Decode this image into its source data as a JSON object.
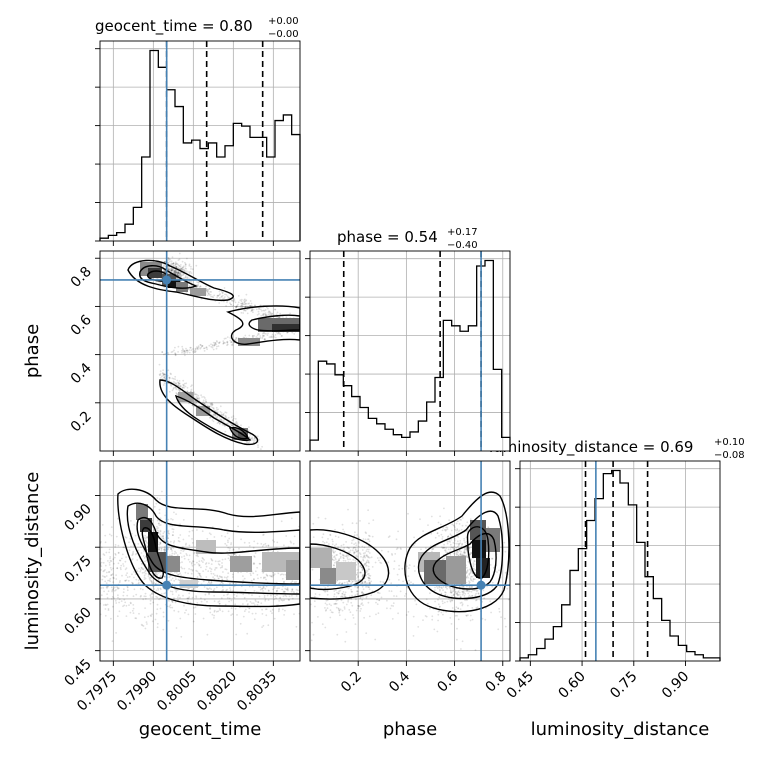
{
  "chart_data": {
    "type": "corner",
    "params": [
      {
        "key": "geocent_time",
        "label": "geocent_time",
        "range": [
          0.797,
          0.8045
        ],
        "ticks": [
          "0.7975",
          "0.7990",
          "0.8005",
          "0.8020",
          "0.8035"
        ],
        "tick_values": [
          0.7975,
          0.799,
          0.8005,
          0.802,
          0.8035
        ],
        "truth": 0.7995,
        "quantiles": [
          0.7995,
          0.801,
          0.8031
        ],
        "title": {
          "name": "geocent_time",
          "median": "0.80",
          "plus": "+0.00",
          "minus": "−0.00"
        },
        "hist": [
          1,
          2,
          3,
          6,
          12,
          30,
          68,
          62,
          54,
          48,
          35,
          36,
          33,
          35,
          30,
          34,
          42,
          41,
          37,
          37,
          30,
          43,
          45,
          38
        ]
      },
      {
        "key": "phase",
        "label": "phase",
        "range": [
          0.0,
          0.83
        ],
        "ticks": [
          "0.2",
          "0.4",
          "0.6",
          "0.8"
        ],
        "tick_values": [
          0.2,
          0.4,
          0.6,
          0.8
        ],
        "truth": 0.71,
        "quantiles": [
          0.14,
          0.54,
          0.71
        ],
        "title": {
          "name": "phase",
          "median": "0.54",
          "plus": "+0.17",
          "minus": "−0.40"
        },
        "hist": [
          4,
          33,
          32,
          28,
          24,
          20,
          16,
          12,
          10,
          8,
          6,
          5,
          7,
          11,
          18,
          27,
          48,
          46,
          44,
          46,
          68,
          70,
          30,
          5
        ]
      },
      {
        "key": "luminosity_distance",
        "label": "luminosity_distance",
        "range": [
          0.42,
          1.0
        ],
        "ticks": [
          "0.45",
          "0.60",
          "0.75",
          "0.90"
        ],
        "tick_values": [
          0.45,
          0.6,
          0.75,
          0.9
        ],
        "truth": 0.64,
        "quantiles": [
          0.61,
          0.69,
          0.79
        ],
        "title": {
          "name": "luminosity_distance",
          "median": "0.69",
          "plus": "+0.10",
          "minus": "−0.08"
        },
        "hist": [
          1,
          2,
          4,
          7,
          11,
          18,
          29,
          36,
          45,
          52,
          60,
          61,
          57,
          50,
          38,
          27,
          20,
          13,
          8,
          5,
          3,
          2,
          1,
          1
        ]
      }
    ],
    "grid": true,
    "truth_color": "#4682b4"
  }
}
